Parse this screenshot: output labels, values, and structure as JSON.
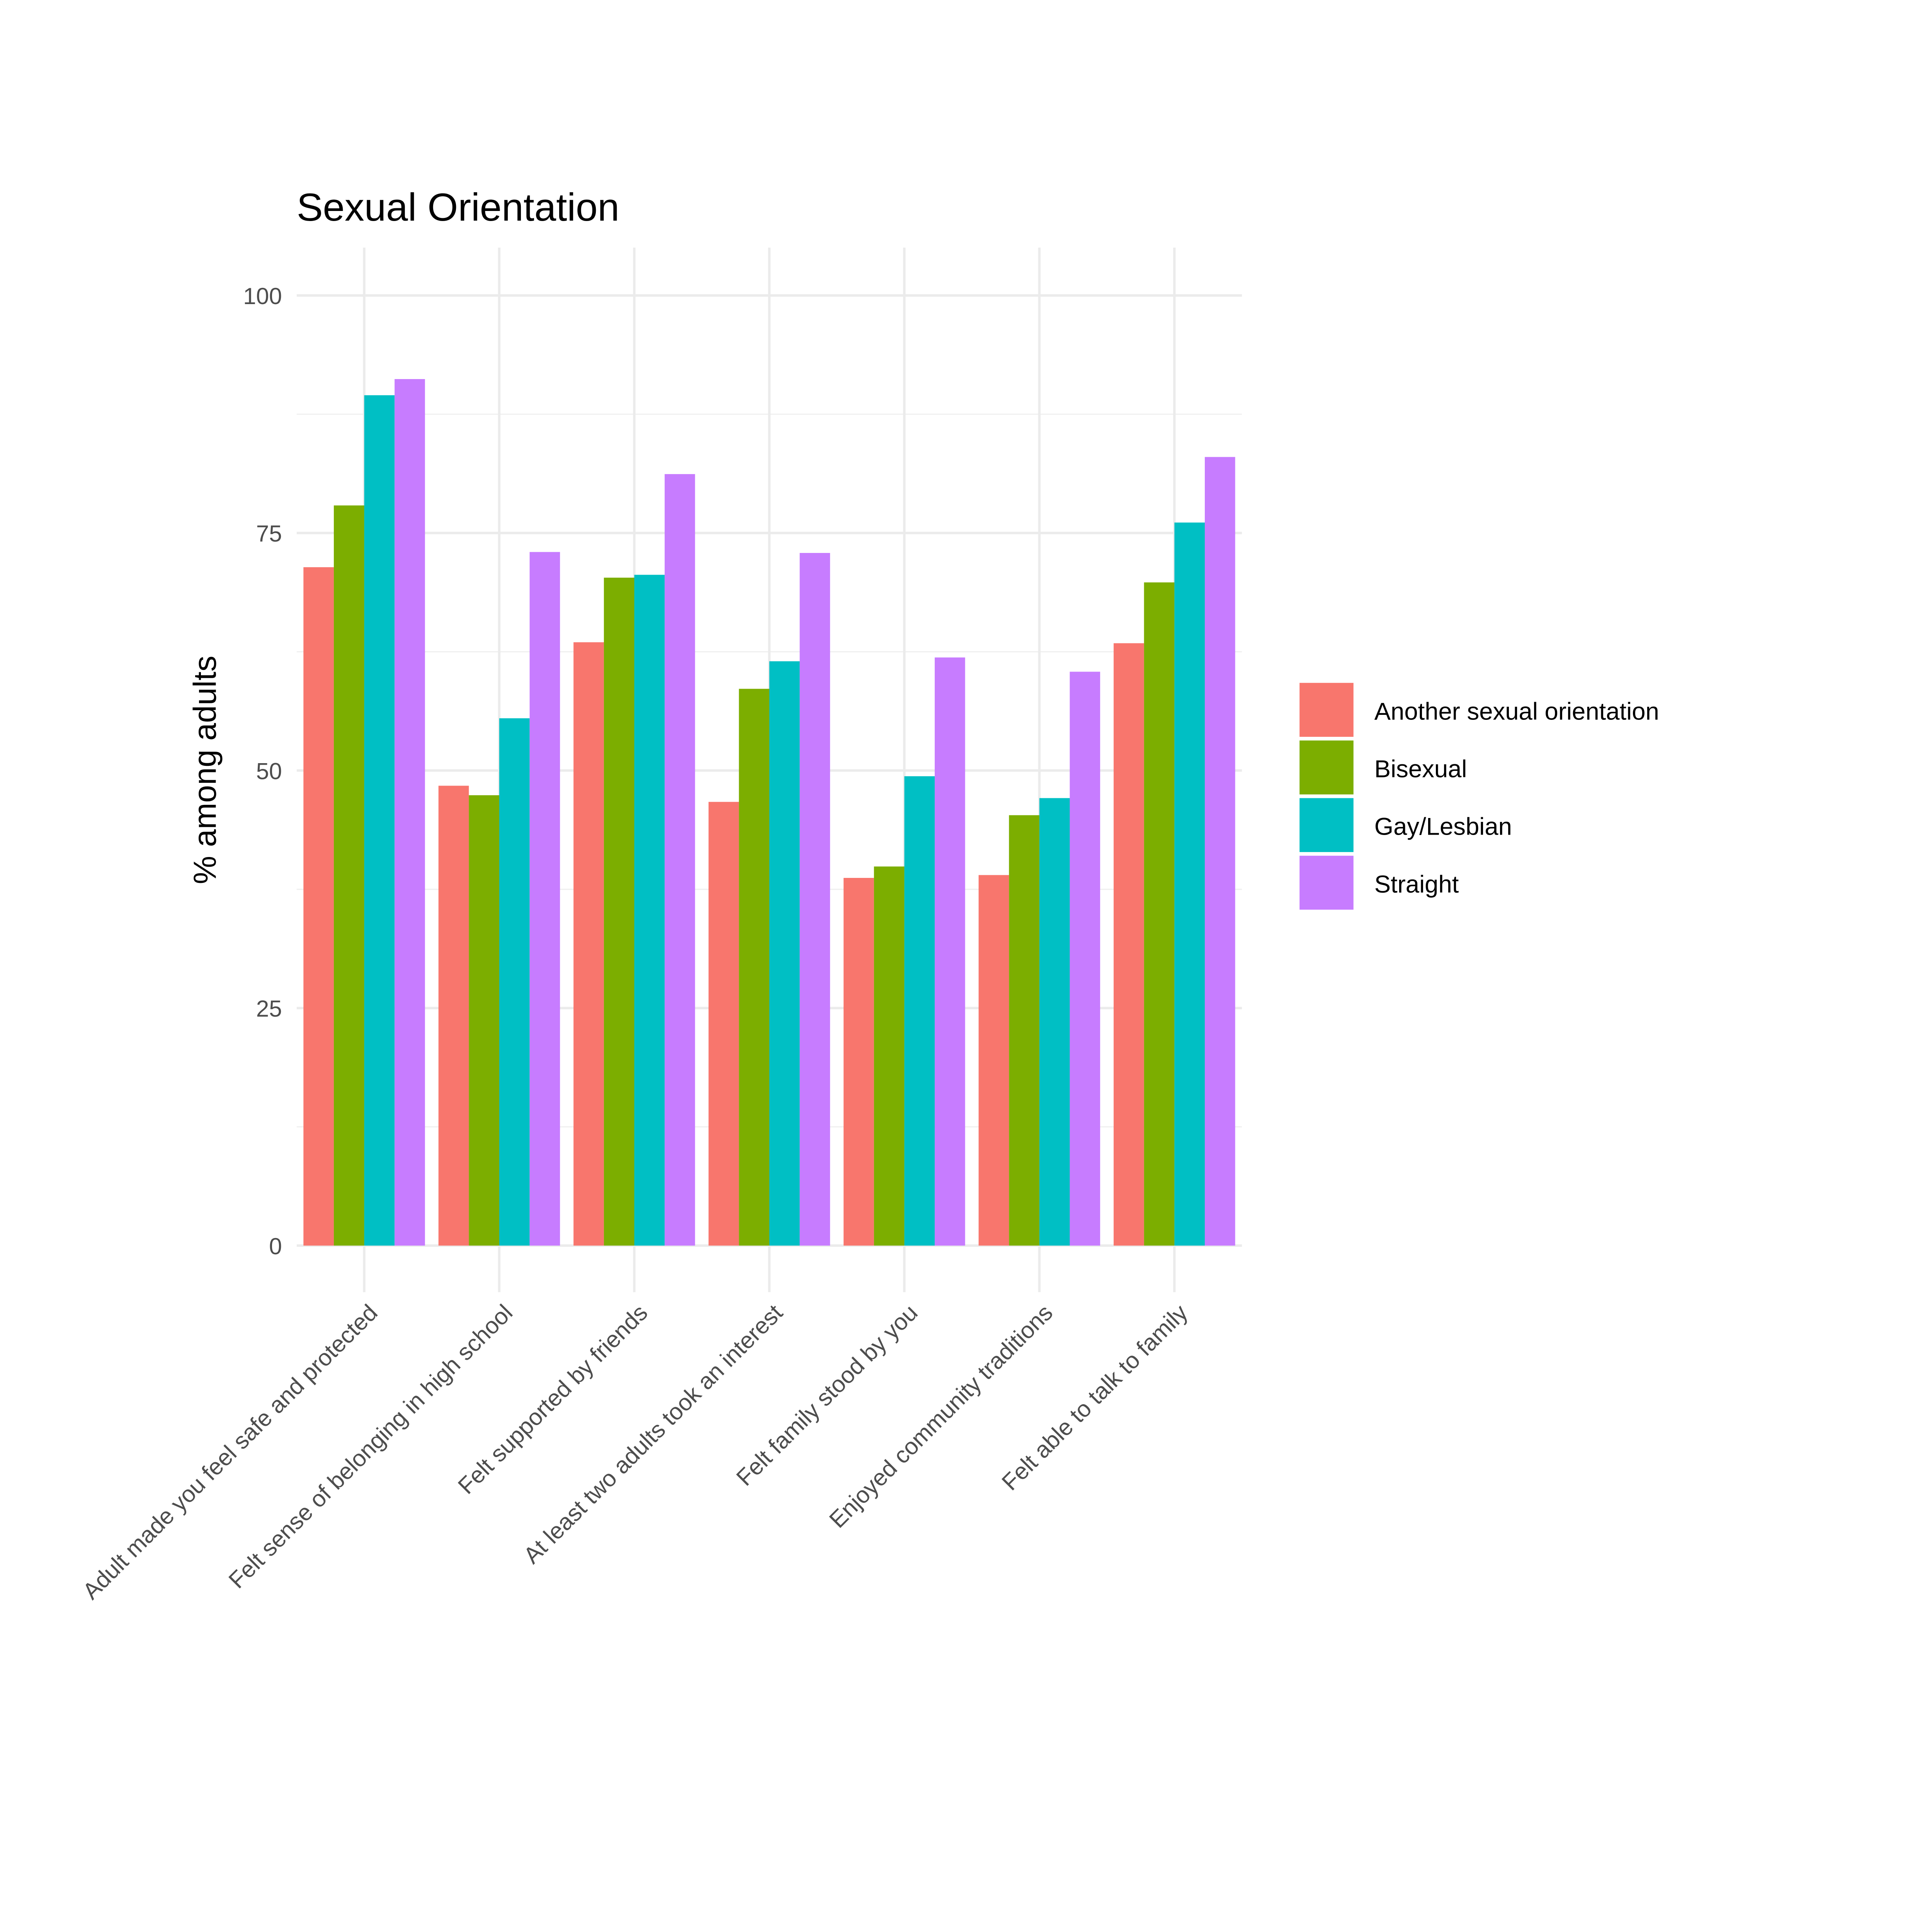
{
  "chart_data": {
    "type": "bar",
    "title": "Sexual Orientation",
    "xlabel": "",
    "ylabel": "% among adults",
    "ylim": [
      0,
      105
    ],
    "yticks": [
      0,
      25,
      50,
      75,
      100
    ],
    "grid": true,
    "legend_position": "right",
    "categories": [
      "Adult made you feel safe and protected",
      "Felt sense of belonging in high school",
      "Felt supported by friends",
      "At least two adults took an interest",
      "Felt family stood by you",
      "Enjoyed community traditions",
      "Felt able to talk to family"
    ],
    "series": [
      {
        "name": "Another sexual orientation",
        "color": "#F8766D",
        "values": [
          71.4,
          48.4,
          63.5,
          46.7,
          38.7,
          39.0,
          63.4
        ]
      },
      {
        "name": "Bisexual",
        "color": "#7CAE00",
        "values": [
          77.9,
          47.4,
          70.3,
          58.6,
          39.9,
          45.3,
          69.8
        ]
      },
      {
        "name": "Gay/Lesbian",
        "color": "#00BFC4",
        "values": [
          89.5,
          55.5,
          70.6,
          61.5,
          49.4,
          47.1,
          76.1
        ]
      },
      {
        "name": "Straight",
        "color": "#C77CFF",
        "values": [
          91.2,
          73.0,
          81.2,
          72.9,
          61.9,
          60.4,
          83.0
        ]
      }
    ]
  }
}
